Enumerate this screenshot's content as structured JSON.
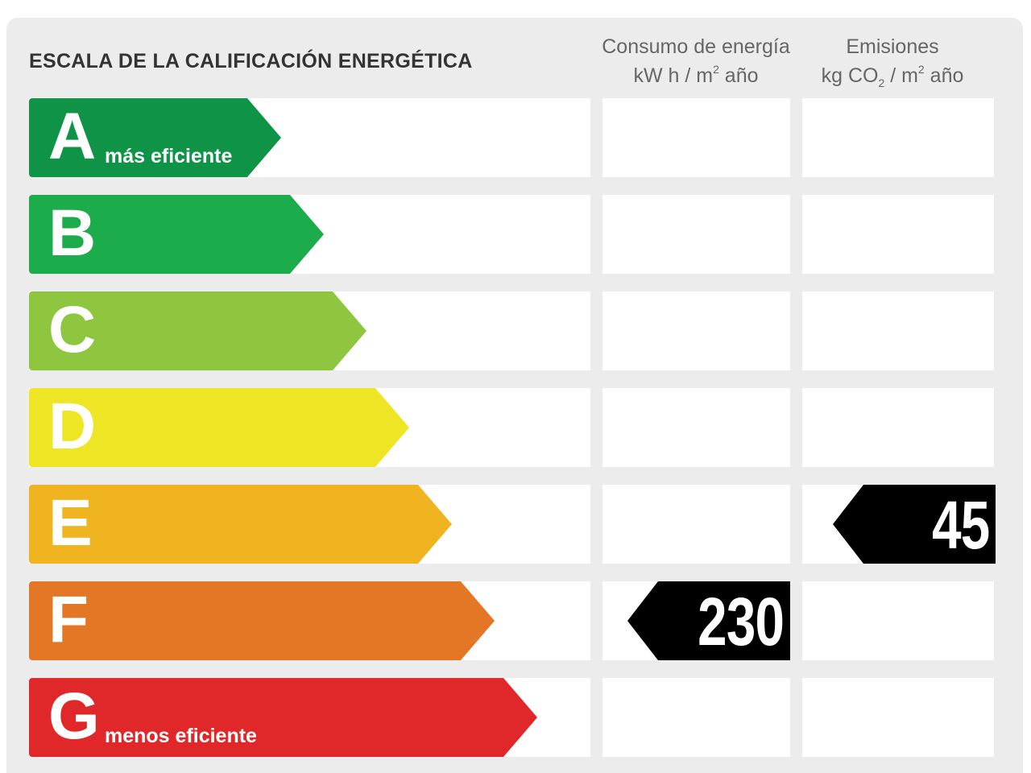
{
  "title": "ESCALA DE LA CALIFICACIÓN ENERGÉTICA",
  "columns": {
    "consumo": {
      "line1": "Consumo de energía",
      "line2_pre": "kW h  / m",
      "line2_sup": "2",
      "line2_post": " año"
    },
    "emisiones": {
      "line1": "Emisiones",
      "line2_pre": "kg CO",
      "line2_sub": "2",
      "line2_mid": "  / m",
      "line2_sup": "2",
      "line2_post": " año"
    }
  },
  "ratings": [
    {
      "letter": "A",
      "sublabel": "más eficiente",
      "color": "#0f9447"
    },
    {
      "letter": "B",
      "sublabel": "",
      "color": "#1cac4c"
    },
    {
      "letter": "C",
      "sublabel": "",
      "color": "#8ec63f"
    },
    {
      "letter": "D",
      "sublabel": "",
      "color": "#eee524"
    },
    {
      "letter": "E",
      "sublabel": "",
      "color": "#f0b420"
    },
    {
      "letter": "F",
      "sublabel": "",
      "color": "#e37725"
    },
    {
      "letter": "G",
      "sublabel": "menos eficiente",
      "color": "#e0282a"
    }
  ],
  "consumo_value": {
    "value": "230",
    "rating": "F"
  },
  "emisiones_value": {
    "value": "45",
    "rating": "E"
  }
}
